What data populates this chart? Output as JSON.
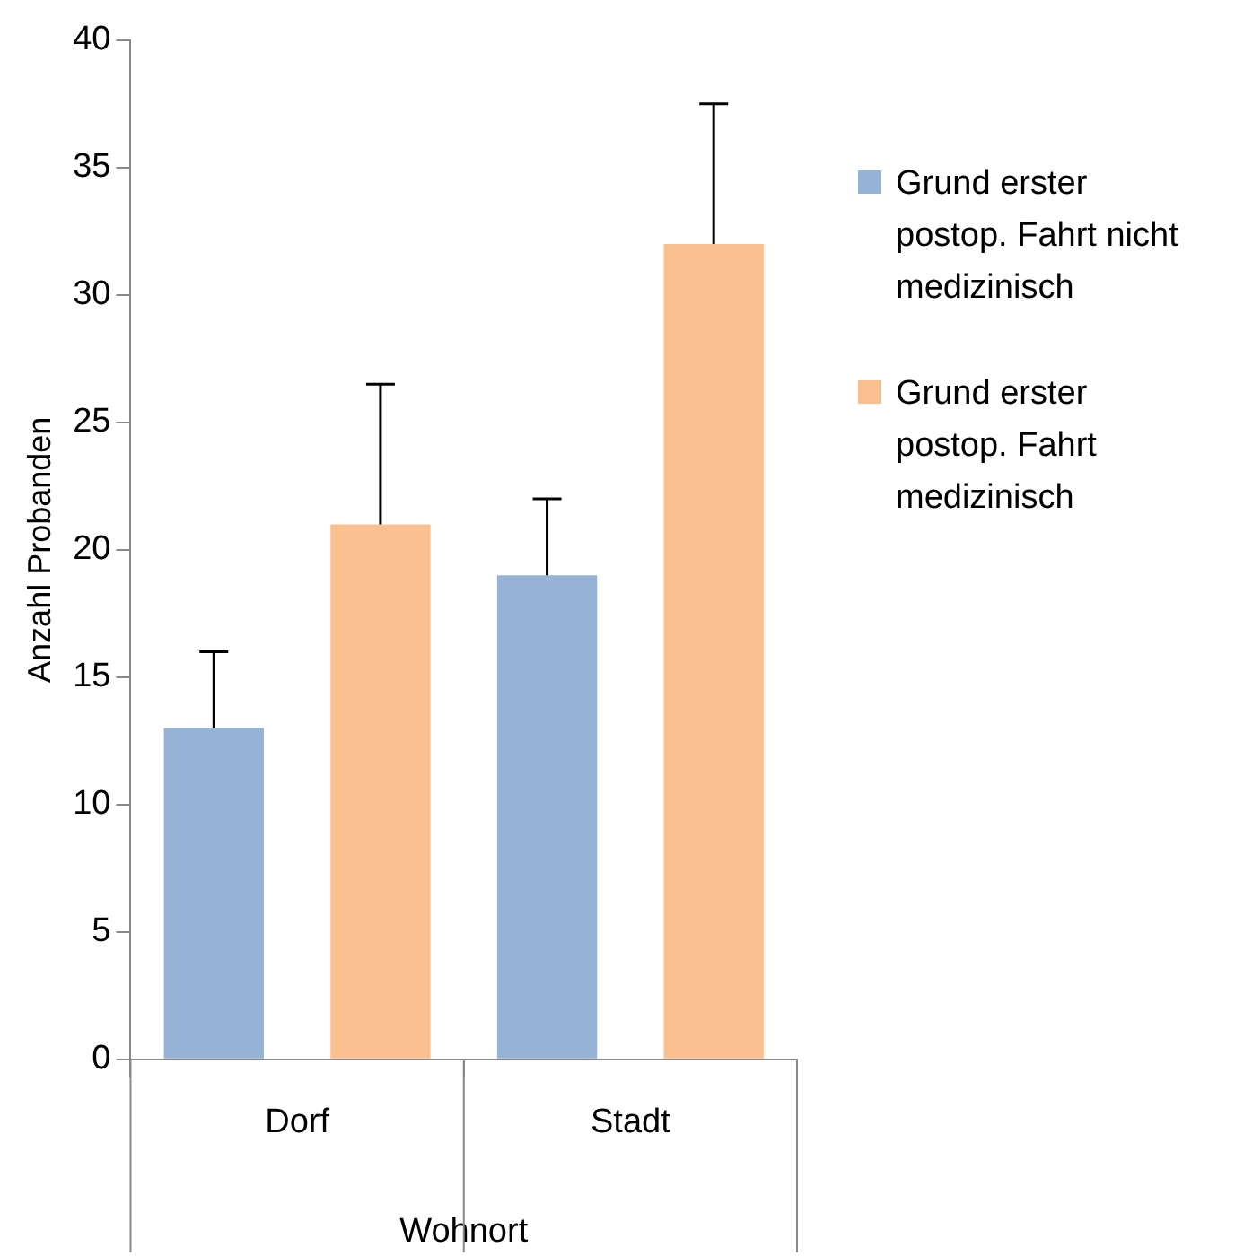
{
  "chart_data": {
    "type": "bar",
    "xlabel": "Wohnort",
    "ylabel": "Anzahl Probanden",
    "categories": [
      "Dorf",
      "Stadt"
    ],
    "series": [
      {
        "name": "Grund erster postop. Fahrt nicht medizinisch",
        "color": "#95b3d7",
        "values": [
          13,
          19
        ],
        "errors": [
          [
            13,
            16
          ],
          [
            19,
            22
          ]
        ]
      },
      {
        "name": "Grund erster postop. Fahrt medizinisch",
        "color": "#fac090",
        "values": [
          21,
          32
        ],
        "errors": [
          [
            21,
            26.5
          ],
          [
            32,
            37.5
          ]
        ]
      }
    ],
    "ylim": [
      0,
      40
    ],
    "yticks": [
      0,
      5,
      10,
      15,
      20,
      25,
      30,
      35,
      40
    ],
    "legend": "right"
  }
}
